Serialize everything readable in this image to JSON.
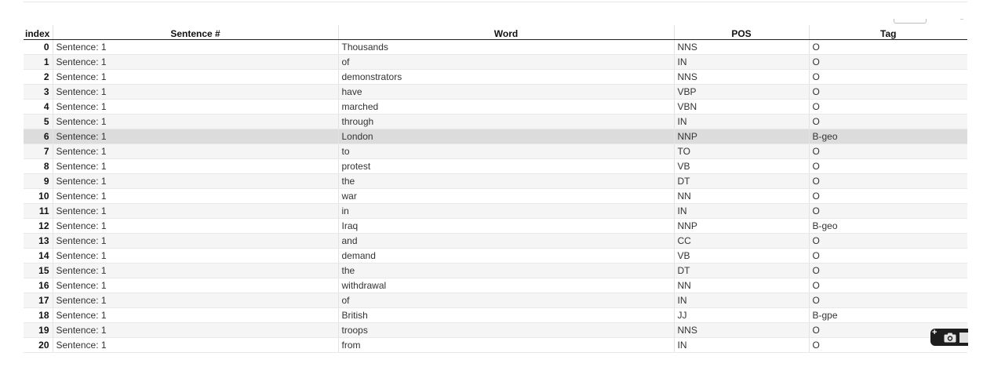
{
  "table": {
    "columns": [
      "index",
      "Sentence #",
      "Word",
      "POS",
      "Tag"
    ],
    "highlighted_index": 6,
    "rows": [
      {
        "index": "0",
        "sentence": "Sentence: 1",
        "word": "Thousands",
        "pos": "NNS",
        "tag": "O"
      },
      {
        "index": "1",
        "sentence": "Sentence: 1",
        "word": "of",
        "pos": "IN",
        "tag": "O"
      },
      {
        "index": "2",
        "sentence": "Sentence: 1",
        "word": "demonstrators",
        "pos": "NNS",
        "tag": "O"
      },
      {
        "index": "3",
        "sentence": "Sentence: 1",
        "word": "have",
        "pos": "VBP",
        "tag": "O"
      },
      {
        "index": "4",
        "sentence": "Sentence: 1",
        "word": "marched",
        "pos": "VBN",
        "tag": "O"
      },
      {
        "index": "5",
        "sentence": "Sentence: 1",
        "word": "through",
        "pos": "IN",
        "tag": "O"
      },
      {
        "index": "6",
        "sentence": "Sentence: 1",
        "word": "London",
        "pos": "NNP",
        "tag": "B-geo"
      },
      {
        "index": "7",
        "sentence": "Sentence: 1",
        "word": "to",
        "pos": "TO",
        "tag": "O"
      },
      {
        "index": "8",
        "sentence": "Sentence: 1",
        "word": "protest",
        "pos": "VB",
        "tag": "O"
      },
      {
        "index": "9",
        "sentence": "Sentence: 1",
        "word": "the",
        "pos": "DT",
        "tag": "O"
      },
      {
        "index": "10",
        "sentence": "Sentence: 1",
        "word": "war",
        "pos": "NN",
        "tag": "O"
      },
      {
        "index": "11",
        "sentence": "Sentence: 1",
        "word": "in",
        "pos": "IN",
        "tag": "O"
      },
      {
        "index": "12",
        "sentence": "Sentence: 1",
        "word": "Iraq",
        "pos": "NNP",
        "tag": "B-geo"
      },
      {
        "index": "13",
        "sentence": "Sentence: 1",
        "word": "and",
        "pos": "CC",
        "tag": "O"
      },
      {
        "index": "14",
        "sentence": "Sentence: 1",
        "word": "demand",
        "pos": "VB",
        "tag": "O"
      },
      {
        "index": "15",
        "sentence": "Sentence: 1",
        "word": "the",
        "pos": "DT",
        "tag": "O"
      },
      {
        "index": "16",
        "sentence": "Sentence: 1",
        "word": "withdrawal",
        "pos": "NN",
        "tag": "O"
      },
      {
        "index": "17",
        "sentence": "Sentence: 1",
        "word": "of",
        "pos": "IN",
        "tag": "O"
      },
      {
        "index": "18",
        "sentence": "Sentence: 1",
        "word": "British",
        "pos": "JJ",
        "tag": "B-gpe"
      },
      {
        "index": "19",
        "sentence": "Sentence: 1",
        "word": "troops",
        "pos": "NNS",
        "tag": "O"
      },
      {
        "index": "20",
        "sentence": "Sentence: 1",
        "word": "from",
        "pos": "IN",
        "tag": "O"
      }
    ]
  },
  "screenshot_widget": {
    "icons": [
      "plus-icon",
      "camera-icon"
    ],
    "background": "#1e1e1e"
  },
  "colors": {
    "row_highlight": "#dcdcdc",
    "row_stripe": "#f5f5f5",
    "header_border": "#222222"
  }
}
